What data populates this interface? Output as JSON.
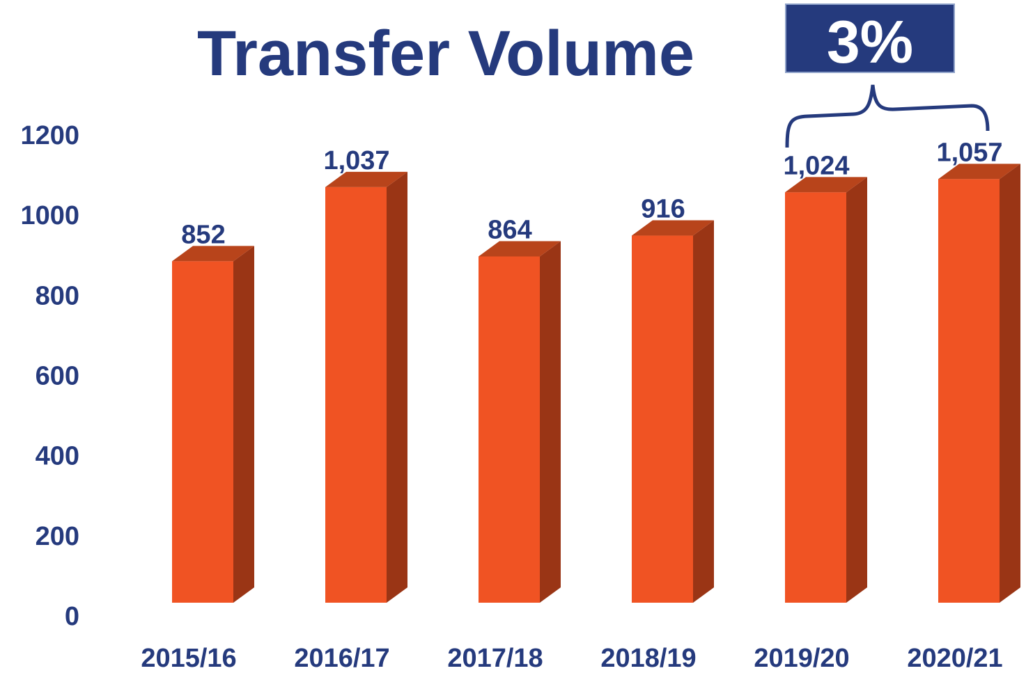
{
  "chart_data": {
    "type": "bar",
    "title": "Transfer Volume",
    "annotation": "3%",
    "categories": [
      "2015/16",
      "2016/17",
      "2017/18",
      "2018/19",
      "2019/20",
      "2020/21"
    ],
    "values": [
      852,
      1037,
      864,
      916,
      1024,
      1057
    ],
    "value_labels": [
      "852",
      "1,037",
      "864",
      "916",
      "1,024",
      "1,057"
    ],
    "color": "#f05323",
    "ylim": [
      0,
      1200
    ],
    "yticks": [
      0,
      200,
      400,
      600,
      800,
      1000,
      1200
    ]
  }
}
